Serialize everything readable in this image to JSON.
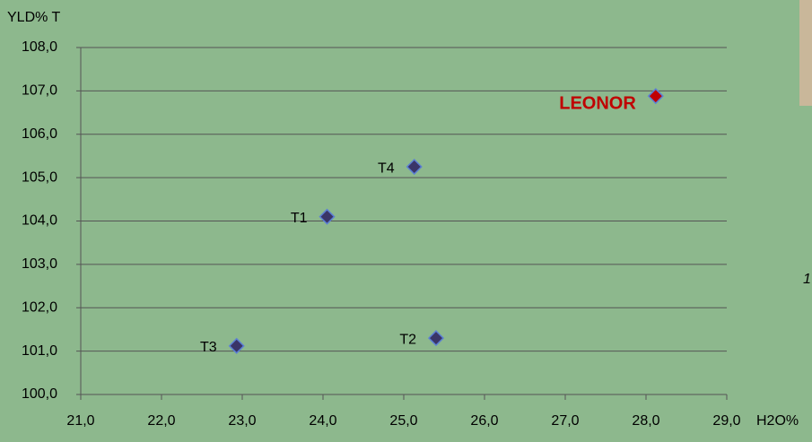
{
  "chart_data": {
    "type": "scatter",
    "y_label": "YLD% T",
    "x_label": "H2O%",
    "annotation": "1",
    "x": [
      24.05,
      25.4,
      22.93,
      25.13,
      28.12
    ],
    "values": [
      104.1,
      101.3,
      101.12,
      105.25,
      106.88
    ],
    "point_labels": [
      "T1",
      "T2",
      "T3",
      "T4",
      "LEONOR"
    ],
    "colors": [
      "#3a3568",
      "#3a3568",
      "#3a3568",
      "#3a3568",
      "#c00000"
    ],
    "label_colors": [
      "#000000",
      "#000000",
      "#000000",
      "#000000",
      "#c00000"
    ],
    "xlim": [
      21,
      29
    ],
    "ylim": [
      100,
      108
    ],
    "xticks": [
      {
        "value": 21,
        "label": "21,0"
      },
      {
        "value": 22,
        "label": "22,0"
      },
      {
        "value": 23,
        "label": "23,0"
      },
      {
        "value": 24,
        "label": "24,0"
      },
      {
        "value": 25,
        "label": "25,0"
      },
      {
        "value": 26,
        "label": "26,0"
      },
      {
        "value": 27,
        "label": "27,0"
      },
      {
        "value": 28,
        "label": "28,0"
      },
      {
        "value": 29,
        "label": "29,0"
      }
    ],
    "yticks": [
      {
        "value": 100,
        "label": "100,0"
      },
      {
        "value": 101,
        "label": "101,0"
      },
      {
        "value": 102,
        "label": "102,0"
      },
      {
        "value": 103,
        "label": "103,0"
      },
      {
        "value": 104,
        "label": "104,0"
      },
      {
        "value": 105,
        "label": "105,0"
      },
      {
        "value": 106,
        "label": "106,0"
      },
      {
        "value": 107,
        "label": "107,0"
      },
      {
        "value": 108,
        "label": "108,0"
      }
    ],
    "grid": true
  }
}
